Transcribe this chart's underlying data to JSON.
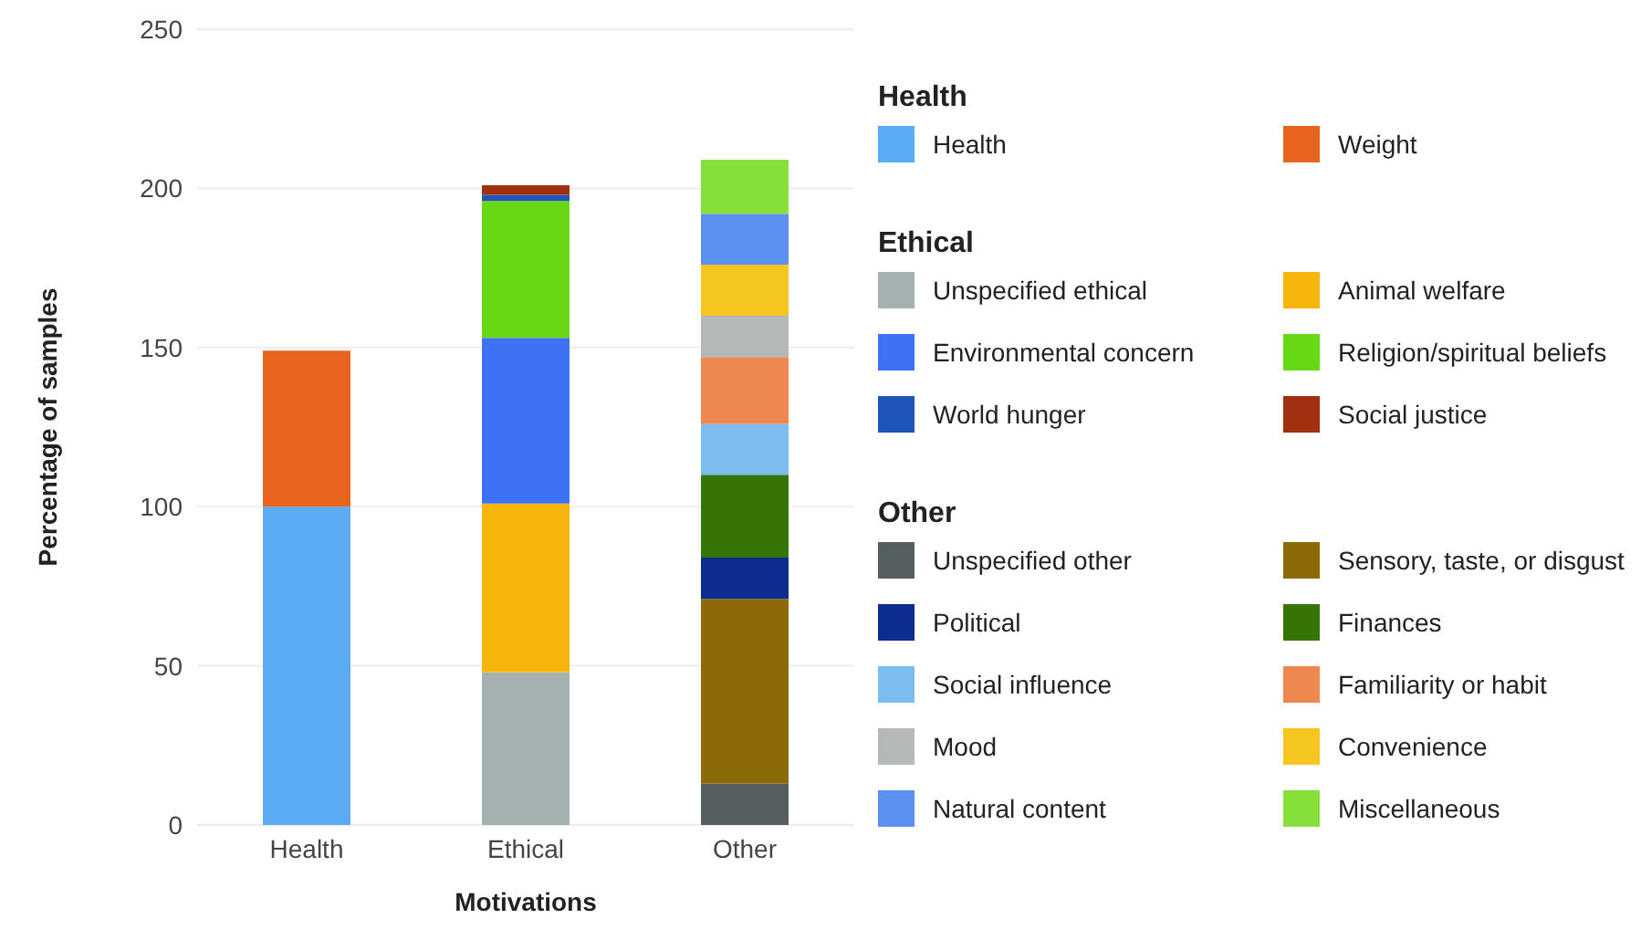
{
  "chart_data": {
    "type": "bar",
    "stacked": true,
    "xlabel": "Motivations",
    "ylabel": "Percentage of samples",
    "categories": [
      "Health",
      "Ethical",
      "Other"
    ],
    "ylim": [
      0,
      250
    ],
    "yticks": [
      0,
      50,
      100,
      150,
      200,
      250
    ],
    "grid": "y",
    "legend": "right",
    "series": [
      {
        "name": "Health",
        "color": "#5aabf2",
        "values": [
          100,
          null,
          null
        ]
      },
      {
        "name": "Weight",
        "color": "#e8641e",
        "values": [
          49,
          null,
          null
        ]
      },
      {
        "name": "Unspecified ethical",
        "color": "#a5b0b0",
        "values": [
          null,
          48,
          null
        ]
      },
      {
        "name": "Animal welfare",
        "color": "#f5b50a",
        "values": [
          null,
          53,
          null
        ]
      },
      {
        "name": "Environmental concern",
        "color": "#3d72f5",
        "values": [
          null,
          52,
          null
        ]
      },
      {
        "name": "Religion/spiritual beliefs",
        "color": "#66d814",
        "values": [
          null,
          43,
          null
        ]
      },
      {
        "name": "World hunger",
        "color": "#1f55b8",
        "values": [
          null,
          2,
          null
        ]
      },
      {
        "name": "Social justice",
        "color": "#a03010",
        "values": [
          null,
          3,
          null
        ]
      },
      {
        "name": "Unspecified other",
        "color": "#555f60",
        "values": [
          null,
          null,
          13
        ]
      },
      {
        "name": "Sensory, taste, or disgust",
        "color": "#8c6a08",
        "values": [
          null,
          null,
          58
        ]
      },
      {
        "name": "Political",
        "color": "#0c2c90",
        "values": [
          null,
          null,
          13
        ]
      },
      {
        "name": "Finances",
        "color": "#357508",
        "values": [
          null,
          null,
          26
        ]
      },
      {
        "name": "Social influence",
        "color": "#7cbdf0",
        "values": [
          null,
          null,
          16
        ]
      },
      {
        "name": "Familiarity or habit",
        "color": "#ee8850",
        "values": [
          null,
          null,
          21
        ]
      },
      {
        "name": "Mood",
        "color": "#b4b8b6",
        "values": [
          null,
          null,
          13
        ]
      },
      {
        "name": "Convenience",
        "color": "#f5c520",
        "values": [
          null,
          null,
          16
        ]
      },
      {
        "name": "Natural content",
        "color": "#5c90f0",
        "values": [
          null,
          null,
          16
        ]
      },
      {
        "name": "Miscellaneous",
        "color": "#86e03a",
        "values": [
          null,
          null,
          17
        ]
      }
    ]
  }
}
